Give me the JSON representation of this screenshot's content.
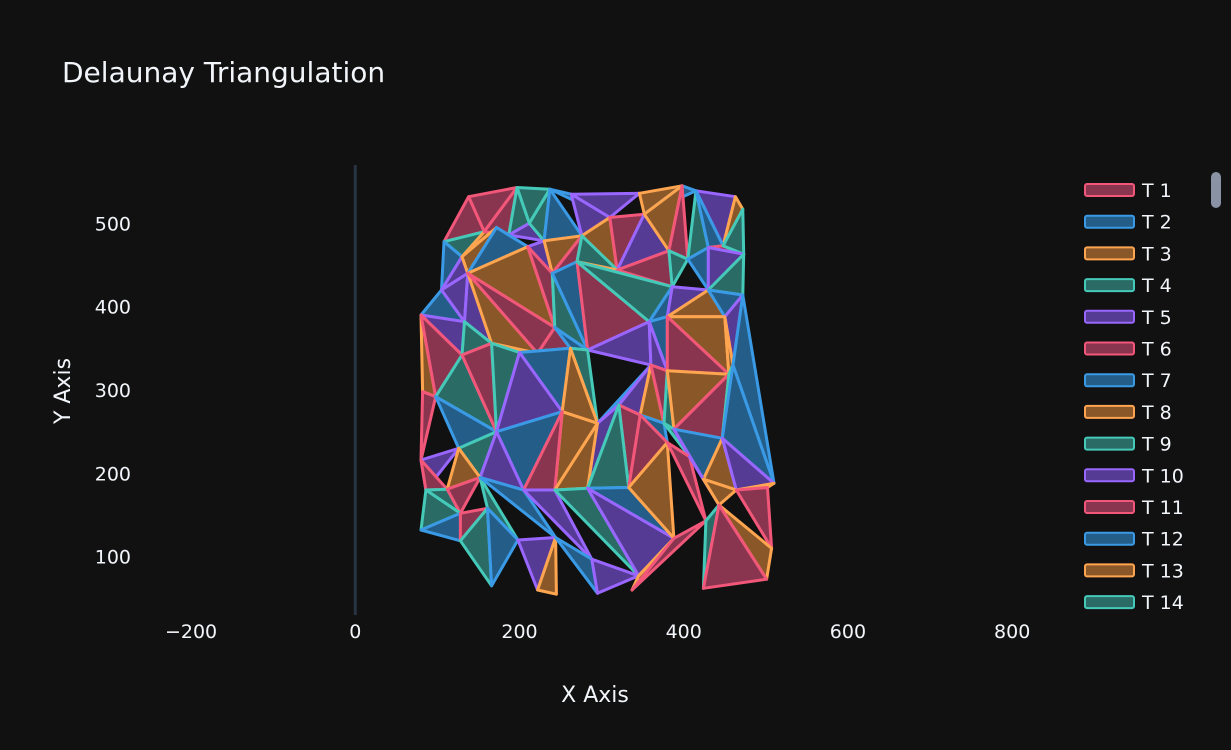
{
  "chart_data": {
    "type": "scatter",
    "title": "Delaunay Triangulation",
    "xlabel": "X Axis",
    "ylabel": "Y Axis",
    "xlim": [
      -250,
      840
    ],
    "ylim": [
      30,
      570
    ],
    "xticks": [
      -200,
      0,
      200,
      400,
      600,
      800
    ],
    "xtick_labels": [
      "−200",
      "0",
      "200",
      "400",
      "600",
      "800"
    ],
    "yticks": [
      100,
      200,
      300,
      400,
      500
    ],
    "grid": false,
    "zero_line": true,
    "legend_position": "right",
    "legend": [
      "T 1",
      "T 2",
      "T 3",
      "T 4",
      "T 5",
      "T 6",
      "T 7",
      "T 8",
      "T 9",
      "T 10",
      "T 11",
      "T 12",
      "T 13",
      "T 14"
    ],
    "colors": [
      "#ef553b",
      "#3a8fd9",
      "#f5a04a",
      "#3fbfb0",
      "#8c5cf0",
      "#f5a04a",
      "#f2577a",
      "#3a8fd9",
      "#f5a04a",
      "#3fbfb0",
      "#8c5cf0",
      "#f5a04a",
      "#f2577a",
      "#3a8fd9"
    ],
    "line_colors": [
      "#f2577a",
      "#3a9ae6",
      "#ffa550",
      "#45c9b8",
      "#9966ff"
    ],
    "fill_colors": [
      "#8a3550",
      "#245d87",
      "#8a5828",
      "#2a6b66",
      "#563b94"
    ],
    "points": [
      [
        138,
        532
      ],
      [
        197,
        543
      ],
      [
        237,
        541
      ],
      [
        263,
        535
      ],
      [
        346,
        536
      ],
      [
        398,
        545
      ],
      [
        415,
        539
      ],
      [
        463,
        532
      ],
      [
        472,
        517
      ],
      [
        108,
        478
      ],
      [
        130,
        460
      ],
      [
        157,
        490
      ],
      [
        172,
        495
      ],
      [
        187,
        486
      ],
      [
        212,
        500
      ],
      [
        230,
        479
      ],
      [
        276,
        485
      ],
      [
        310,
        507
      ],
      [
        352,
        511
      ],
      [
        382,
        467
      ],
      [
        405,
        457
      ],
      [
        430,
        471
      ],
      [
        448,
        473
      ],
      [
        473,
        463
      ],
      [
        105,
        420
      ],
      [
        137,
        440
      ],
      [
        210,
        472
      ],
      [
        240,
        440
      ],
      [
        270,
        454
      ],
      [
        319,
        444
      ],
      [
        386,
        424
      ],
      [
        430,
        420
      ],
      [
        472,
        414
      ],
      [
        80,
        390
      ],
      [
        133,
        382
      ],
      [
        166,
        356
      ],
      [
        222,
        344
      ],
      [
        243,
        375
      ],
      [
        283,
        348
      ],
      [
        358,
        382
      ],
      [
        380,
        388
      ],
      [
        450,
        388
      ],
      [
        82,
        298
      ],
      [
        98,
        292
      ],
      [
        130,
        342
      ],
      [
        200,
        345
      ],
      [
        262,
        350
      ],
      [
        360,
        330
      ],
      [
        380,
        323
      ],
      [
        455,
        319
      ],
      [
        460,
        330
      ],
      [
        172,
        250
      ],
      [
        252,
        274
      ],
      [
        295,
        260
      ],
      [
        321,
        282
      ],
      [
        347,
        270
      ],
      [
        376,
        260
      ],
      [
        388,
        253
      ],
      [
        447,
        242
      ],
      [
        80,
        216
      ],
      [
        126,
        230
      ],
      [
        152,
        195
      ],
      [
        205,
        180
      ],
      [
        243,
        180
      ],
      [
        283,
        182
      ],
      [
        333,
        183
      ],
      [
        380,
        237
      ],
      [
        407,
        220
      ],
      [
        424,
        193
      ],
      [
        464,
        180
      ],
      [
        510,
        188
      ],
      [
        502,
        183
      ],
      [
        86,
        180
      ],
      [
        112,
        181
      ],
      [
        128,
        152
      ],
      [
        161,
        158
      ],
      [
        198,
        120
      ],
      [
        244,
        123
      ],
      [
        288,
        97
      ],
      [
        345,
        77
      ],
      [
        388,
        122
      ],
      [
        427,
        143
      ],
      [
        443,
        162
      ],
      [
        507,
        110
      ],
      [
        80,
        132
      ],
      [
        128,
        119
      ],
      [
        166,
        65
      ],
      [
        222,
        60
      ],
      [
        245,
        55
      ],
      [
        295,
        56
      ],
      [
        337,
        60
      ],
      [
        424,
        62
      ],
      [
        501,
        73
      ]
    ],
    "triangles": [
      [
        0,
        1,
        11
      ],
      [
        1,
        2,
        14
      ],
      [
        2,
        3,
        17
      ],
      [
        3,
        4,
        17
      ],
      [
        4,
        5,
        18
      ],
      [
        5,
        6,
        18
      ],
      [
        6,
        7,
        22
      ],
      [
        7,
        8,
        22
      ],
      [
        0,
        9,
        11
      ],
      [
        9,
        10,
        11
      ],
      [
        11,
        12,
        10
      ],
      [
        1,
        11,
        13
      ],
      [
        1,
        13,
        14
      ],
      [
        12,
        13,
        26
      ],
      [
        13,
        14,
        15
      ],
      [
        14,
        15,
        2
      ],
      [
        2,
        15,
        16
      ],
      [
        3,
        16,
        17
      ],
      [
        16,
        17,
        29
      ],
      [
        17,
        18,
        29
      ],
      [
        18,
        19,
        29
      ],
      [
        18,
        5,
        19
      ],
      [
        5,
        20,
        19
      ],
      [
        6,
        20,
        21
      ],
      [
        6,
        21,
        22
      ],
      [
        21,
        22,
        23
      ],
      [
        22,
        8,
        23
      ],
      [
        9,
        10,
        24
      ],
      [
        10,
        25,
        24
      ],
      [
        10,
        12,
        25
      ],
      [
        12,
        26,
        25
      ],
      [
        26,
        15,
        27
      ],
      [
        15,
        16,
        27
      ],
      [
        16,
        28,
        27
      ],
      [
        16,
        29,
        28
      ],
      [
        28,
        29,
        30
      ],
      [
        19,
        29,
        30
      ],
      [
        19,
        20,
        30
      ],
      [
        20,
        21,
        31
      ],
      [
        21,
        23,
        31
      ],
      [
        23,
        32,
        31
      ],
      [
        24,
        33,
        34
      ],
      [
        24,
        25,
        34
      ],
      [
        25,
        26,
        37
      ],
      [
        26,
        27,
        37
      ],
      [
        25,
        34,
        35
      ],
      [
        25,
        35,
        36
      ],
      [
        25,
        36,
        37
      ],
      [
        37,
        38,
        27
      ],
      [
        27,
        28,
        38
      ],
      [
        28,
        38,
        39
      ],
      [
        28,
        30,
        39
      ],
      [
        30,
        39,
        40
      ],
      [
        30,
        40,
        31
      ],
      [
        31,
        40,
        41
      ],
      [
        31,
        32,
        41
      ],
      [
        33,
        34,
        44
      ],
      [
        33,
        42,
        43
      ],
      [
        33,
        43,
        44
      ],
      [
        34,
        35,
        44
      ],
      [
        35,
        45,
        36
      ],
      [
        36,
        37,
        46
      ],
      [
        36,
        46,
        45
      ],
      [
        37,
        38,
        46
      ],
      [
        38,
        39,
        47
      ],
      [
        38,
        46,
        53
      ],
      [
        39,
        40,
        48
      ],
      [
        39,
        47,
        48
      ],
      [
        40,
        41,
        49
      ],
      [
        40,
        48,
        49
      ],
      [
        41,
        32,
        50
      ],
      [
        41,
        50,
        49
      ],
      [
        42,
        43,
        59
      ],
      [
        43,
        44,
        51
      ],
      [
        43,
        51,
        60
      ],
      [
        44,
        35,
        51
      ],
      [
        35,
        45,
        51
      ],
      [
        45,
        46,
        52
      ],
      [
        45,
        51,
        52
      ],
      [
        46,
        53,
        52
      ],
      [
        53,
        54,
        47
      ],
      [
        47,
        54,
        55
      ],
      [
        47,
        55,
        56
      ],
      [
        47,
        56,
        48
      ],
      [
        48,
        56,
        57
      ],
      [
        48,
        57,
        49
      ],
      [
        49,
        57,
        58
      ],
      [
        49,
        50,
        58
      ],
      [
        50,
        32,
        70
      ],
      [
        59,
        60,
        72
      ],
      [
        60,
        51,
        61
      ],
      [
        51,
        52,
        62
      ],
      [
        51,
        62,
        61
      ],
      [
        52,
        53,
        63
      ],
      [
        52,
        62,
        63
      ],
      [
        53,
        54,
        64
      ],
      [
        53,
        63,
        64
      ],
      [
        54,
        55,
        65
      ],
      [
        54,
        65,
        64
      ],
      [
        55,
        56,
        66
      ],
      [
        55,
        66,
        65
      ],
      [
        56,
        57,
        67
      ],
      [
        57,
        58,
        68
      ],
      [
        57,
        68,
        67
      ],
      [
        58,
        69,
        68
      ],
      [
        58,
        50,
        70
      ],
      [
        58,
        70,
        69
      ],
      [
        69,
        70,
        71
      ],
      [
        59,
        72,
        73
      ],
      [
        72,
        73,
        74
      ],
      [
        73,
        60,
        61
      ],
      [
        73,
        61,
        74
      ],
      [
        61,
        75,
        76
      ],
      [
        61,
        62,
        77
      ],
      [
        62,
        63,
        78
      ],
      [
        63,
        64,
        79
      ],
      [
        64,
        65,
        80
      ],
      [
        64,
        80,
        79
      ],
      [
        65,
        66,
        80
      ],
      [
        66,
        67,
        81
      ],
      [
        67,
        68,
        82
      ],
      [
        68,
        69,
        82
      ],
      [
        69,
        71,
        83
      ],
      [
        72,
        84,
        74
      ],
      [
        74,
        85,
        84
      ],
      [
        74,
        75,
        85
      ],
      [
        75,
        86,
        85
      ],
      [
        75,
        76,
        86
      ],
      [
        76,
        77,
        87
      ],
      [
        77,
        88,
        87
      ],
      [
        77,
        78,
        89
      ],
      [
        78,
        79,
        89
      ],
      [
        79,
        80,
        90
      ],
      [
        80,
        81,
        90
      ],
      [
        81,
        82,
        91
      ],
      [
        82,
        83,
        92
      ],
      [
        82,
        91,
        92
      ]
    ]
  }
}
